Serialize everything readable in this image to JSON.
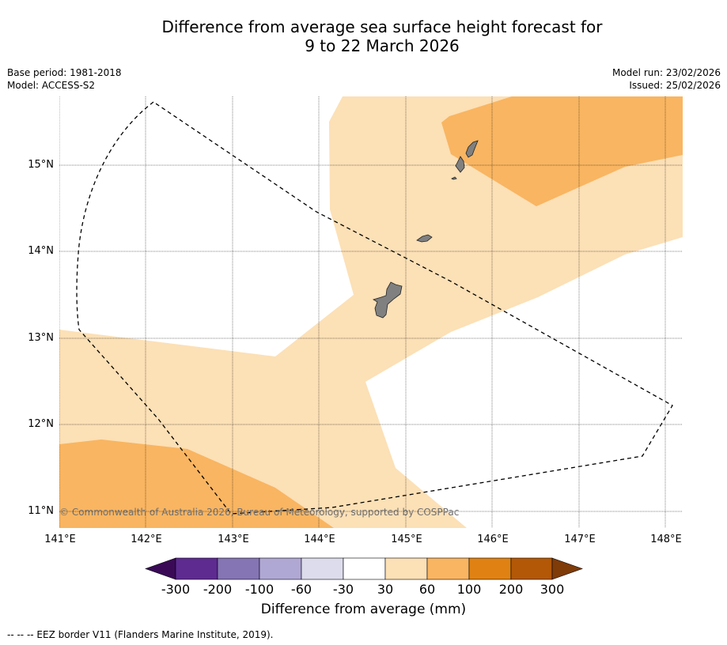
{
  "title": {
    "line1": "Difference from average sea surface height forecast for",
    "line2": "9 to 22 March 2026"
  },
  "meta_left": {
    "base_period": "Base period: 1981-2018",
    "model": "Model: ACCESS-S2"
  },
  "meta_right": {
    "model_run": "Model run: 23/02/2026",
    "issued": "Issued: 25/02/2026"
  },
  "map": {
    "copyright": "© Commonwealth of Australia 2026, Bureau of Meteorology, supported by COSPPac",
    "lon_labels": [
      "141°E",
      "142°E",
      "143°E",
      "144°E",
      "145°E",
      "146°E",
      "147°E",
      "148°E"
    ],
    "lat_labels": [
      "15°N",
      "14°N",
      "13°N",
      "12°N",
      "11°N"
    ],
    "extent": {
      "lon_min": 141.0,
      "lon_max": 148.2,
      "lat_min": 10.8,
      "lat_max": 15.8
    },
    "colors": {
      "band_30_60": "#fce0b6",
      "band_60_100": "#f9b561",
      "land": "#808080",
      "grid": "#000000",
      "eez": "#000000"
    },
    "islands": [
      "Guam",
      "Rota",
      "Tinian",
      "Saipan"
    ]
  },
  "colorbar": {
    "ticks": [
      "-300",
      "-200",
      "-100",
      "-60",
      "-30",
      "30",
      "60",
      "100",
      "200",
      "300"
    ],
    "colors": [
      "#3a0a57",
      "#5e2b91",
      "#8575b5",
      "#b0a8d4",
      "#dcdcec",
      "#ffffff",
      "#fce0b6",
      "#f9b561",
      "#e08213",
      "#b35806",
      "#7f3b08"
    ],
    "label": "Difference from average (mm)"
  },
  "legend": {
    "eez_label": "--  --  -- EEZ border V11 (Flanders Marine Institute, 2019)."
  }
}
